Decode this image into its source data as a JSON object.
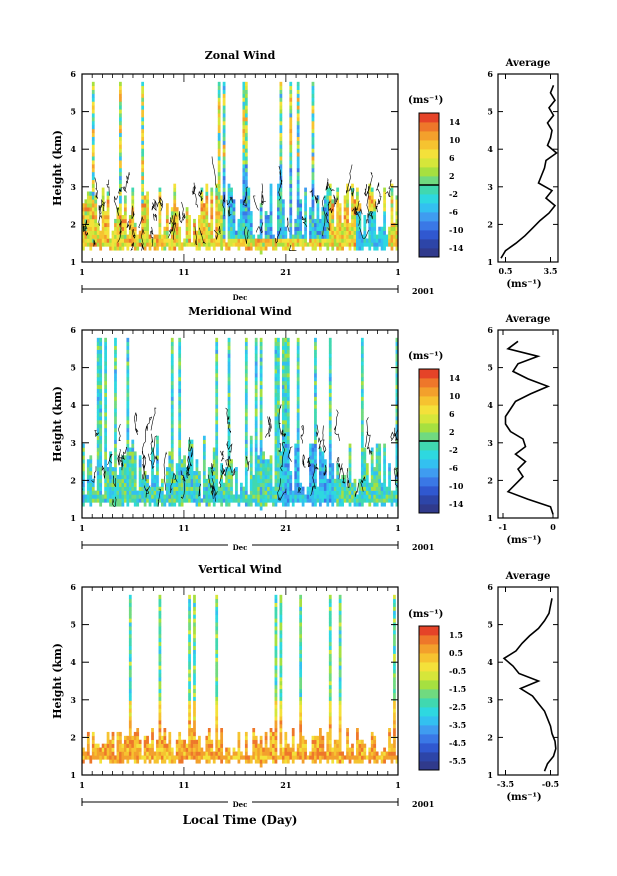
{
  "figure": {
    "year_label": "2001",
    "month_label": "Dec",
    "xlabel": "Local Time (Day)"
  },
  "chart_data": [
    {
      "type": "heatmap",
      "title": "Zonal Wind",
      "ylabel": "Height (km)",
      "xlabel": "Local Time (Day)",
      "xticks": [
        "1",
        "11",
        "21",
        "1"
      ],
      "xlim": [
        1,
        32
      ],
      "ylim": [
        1,
        6
      ],
      "yticks": [
        "1",
        "2",
        "3",
        "4",
        "5",
        "6"
      ],
      "colorbar": {
        "unit": "(ms⁻¹)",
        "ticks": [
          "14",
          "10",
          "6",
          "2",
          "-2",
          "-6",
          "-10",
          "-14"
        ],
        "range": [
          -16,
          16
        ]
      },
      "contour_levels": [
        0
      ],
      "profile": {
        "title": "Average",
        "xlabel": "(ms⁻¹)",
        "xticks": [
          "0.5",
          "3.5"
        ],
        "xlim": [
          0.0,
          4.0
        ],
        "height": [
          1.1,
          1.3,
          1.5,
          1.7,
          1.9,
          2.1,
          2.3,
          2.5,
          2.7,
          2.9,
          3.1,
          3.3,
          3.5,
          3.7,
          3.9,
          4.1,
          4.3,
          4.5,
          4.7,
          4.9,
          5.1,
          5.3,
          5.5,
          5.7
        ],
        "values": [
          0.2,
          0.5,
          1.2,
          1.8,
          2.3,
          2.8,
          3.4,
          3.8,
          3.2,
          3.6,
          2.7,
          2.9,
          3.1,
          3.2,
          3.9,
          3.3,
          3.5,
          3.6,
          3.3,
          3.7,
          3.4,
          3.8,
          3.5,
          3.7
        ]
      }
    },
    {
      "type": "heatmap",
      "title": "Meridional Wind",
      "ylabel": "Height (km)",
      "xlabel": "Local Time (Day)",
      "xticks": [
        "1",
        "11",
        "21",
        "1"
      ],
      "xlim": [
        1,
        32
      ],
      "ylim": [
        1,
        6
      ],
      "yticks": [
        "1",
        "2",
        "3",
        "4",
        "5",
        "6"
      ],
      "colorbar": {
        "unit": "(ms⁻¹)",
        "ticks": [
          "14",
          "10",
          "6",
          "2",
          "-2",
          "-6",
          "-10",
          "-14"
        ],
        "range": [
          -16,
          16
        ]
      },
      "contour_levels": [
        0
      ],
      "profile": {
        "title": "Average",
        "xlabel": "(ms⁻¹)",
        "xticks": [
          "-1",
          "0"
        ],
        "xlim": [
          -1.1,
          0.1
        ],
        "height": [
          1.1,
          1.3,
          1.5,
          1.7,
          1.9,
          2.1,
          2.3,
          2.5,
          2.7,
          2.9,
          3.1,
          3.3,
          3.5,
          3.7,
          3.9,
          4.1,
          4.3,
          4.5,
          4.7,
          4.9,
          5.1,
          5.3,
          5.5,
          5.7
        ],
        "values": [
          0.0,
          -0.05,
          -0.5,
          -0.9,
          -0.75,
          -0.6,
          -0.7,
          -0.55,
          -0.75,
          -0.55,
          -0.6,
          -0.85,
          -0.95,
          -0.95,
          -0.85,
          -0.75,
          -0.45,
          -0.1,
          -0.5,
          -0.8,
          -0.7,
          -0.3,
          -0.9,
          -0.7
        ]
      }
    },
    {
      "type": "heatmap",
      "title": "Vertical Wind",
      "ylabel": "Height (km)",
      "xlabel": "Local Time (Day)",
      "xticks": [
        "1",
        "11",
        "21",
        "1"
      ],
      "xlim": [
        1,
        32
      ],
      "ylim": [
        1,
        6
      ],
      "yticks": [
        "1",
        "2",
        "3",
        "4",
        "5",
        "6"
      ],
      "colorbar": {
        "unit": "(ms⁻¹)",
        "ticks": [
          "1.5",
          "0.5",
          "-0.5",
          "-1.5",
          "-2.5",
          "-3.5",
          "-4.5",
          "-5.5"
        ],
        "range": [
          -6,
          2
        ]
      },
      "contour_levels": [],
      "profile": {
        "title": "Average",
        "xlabel": "(ms⁻¹)",
        "xticks": [
          "-3.5",
          "-0.5"
        ],
        "xlim": [
          -4.0,
          0.0
        ],
        "height": [
          1.1,
          1.3,
          1.5,
          1.7,
          1.9,
          2.1,
          2.3,
          2.5,
          2.7,
          2.9,
          3.1,
          3.3,
          3.5,
          3.7,
          3.9,
          4.1,
          4.3,
          4.5,
          4.7,
          4.9,
          5.1,
          5.3,
          5.5,
          5.7
        ],
        "values": [
          -0.9,
          -0.7,
          -0.3,
          -0.15,
          -0.2,
          -0.4,
          -0.5,
          -0.7,
          -0.9,
          -1.3,
          -1.7,
          -2.5,
          -1.3,
          -2.6,
          -3.0,
          -3.6,
          -2.8,
          -2.4,
          -1.9,
          -1.3,
          -0.9,
          -0.6,
          -0.5,
          -0.4
        ]
      }
    }
  ]
}
